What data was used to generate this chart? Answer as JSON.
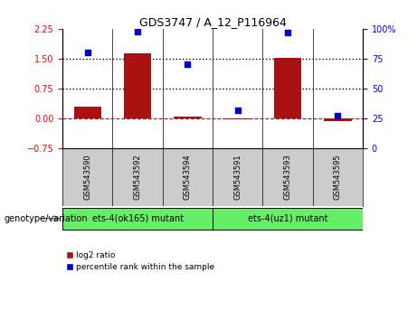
{
  "title": "GDS3747 / A_12_P116964",
  "samples": [
    "GSM543590",
    "GSM543592",
    "GSM543594",
    "GSM543591",
    "GSM543593",
    "GSM543595"
  ],
  "log2_ratio": [
    0.3,
    1.63,
    0.04,
    -0.03,
    1.52,
    -0.07
  ],
  "percentile_rank": [
    80,
    98,
    70,
    32,
    97,
    27
  ],
  "bar_color": "#aa1111",
  "point_color": "#0000cc",
  "left_ylim": [
    -0.75,
    2.25
  ],
  "right_ylim": [
    0,
    100
  ],
  "left_yticks": [
    -0.75,
    0,
    0.75,
    1.5,
    2.25
  ],
  "right_yticks": [
    0,
    25,
    50,
    75,
    100
  ],
  "hline1": 1.5,
  "hline2": 0.75,
  "background_color": "#ffffff",
  "plot_bg": "#ffffff",
  "tick_label_area_bg": "#cccccc",
  "bar_width": 0.55,
  "group1_label": "ets-4(ok165) mutant",
  "group2_label": "ets-4(uz1) mutant",
  "group_color": "#66ee66",
  "genotype_label": "genotype/variation"
}
